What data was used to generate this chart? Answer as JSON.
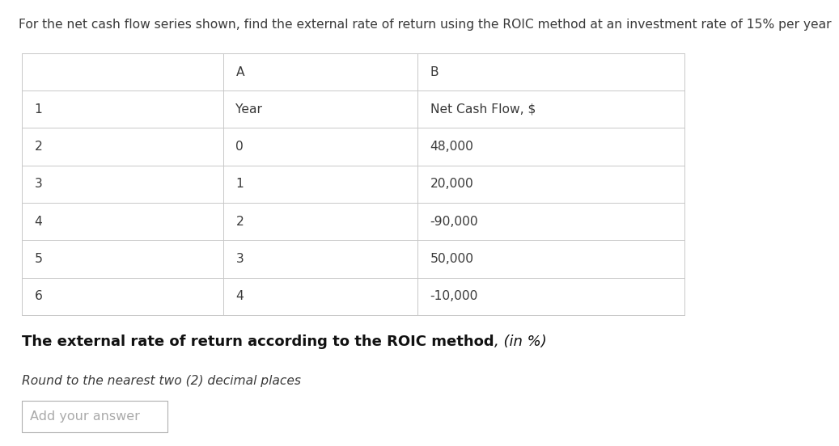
{
  "title": "For the net cash flow series shown, find the external rate of return using the ROIC method at an investment rate of 15% per year",
  "title_fontsize": 11.2,
  "col_A_header": "A",
  "col_B_header": "B",
  "row_numbers": [
    "1",
    "2",
    "3",
    "4",
    "5",
    "6"
  ],
  "col_a_values": [
    "Year",
    "0",
    "1",
    "2",
    "3",
    "4"
  ],
  "col_b_values": [
    "Net Cash Flow, $",
    "48,000",
    "20,000",
    "-90,000",
    "50,000",
    "-10,000"
  ],
  "bottom_label_bold": "The external rate of return according to the ROIC method",
  "bottom_label_italic": ", (in %)",
  "instruction_text": "Round to the nearest two (2) decimal places",
  "answer_placeholder": "Add your answer",
  "bg_color": "#ffffff",
  "table_border_color": "#c8c8c8",
  "text_color": "#3a3a3a",
  "answer_box_border": "#b0b0b0",
  "answer_box_bg": "#ffffff",
  "font_size_table": 11.2,
  "font_size_bottom_bold": 13.0,
  "font_size_bottom_italic": 13.0,
  "font_size_instruction": 11.2,
  "font_size_answer": 11.5
}
